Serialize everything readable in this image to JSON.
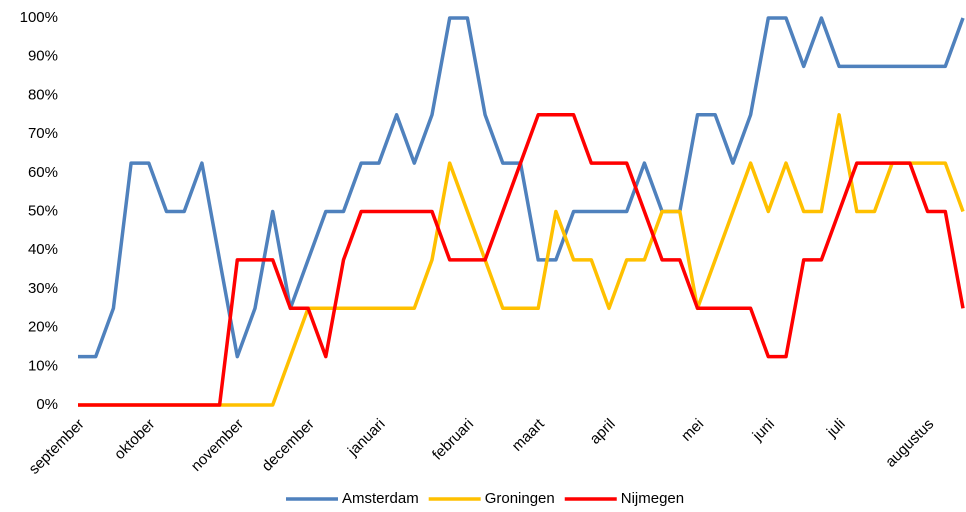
{
  "chart_data": {
    "type": "line",
    "categories": [
      "september",
      null,
      null,
      null,
      "oktober",
      null,
      null,
      null,
      null,
      "november",
      null,
      null,
      null,
      "december",
      null,
      null,
      null,
      "januari",
      null,
      null,
      null,
      null,
      "februari",
      null,
      null,
      null,
      "maart",
      null,
      null,
      null,
      "april",
      null,
      null,
      null,
      null,
      "mei",
      null,
      null,
      null,
      "juni",
      null,
      null,
      null,
      "juli",
      null,
      null,
      null,
      null,
      "augustus",
      null,
      null
    ],
    "series": [
      {
        "name": "Amsterdam",
        "color": "#4f81bd",
        "values": [
          12.5,
          12.5,
          25,
          62.5,
          62.5,
          50,
          50,
          62.5,
          37.5,
          12.5,
          25,
          50,
          25,
          37.5,
          50,
          50,
          62.5,
          62.5,
          75,
          62.5,
          75,
          100,
          100,
          75,
          62.5,
          62.5,
          37.5,
          37.5,
          50,
          50,
          50,
          50,
          62.5,
          50,
          50,
          75,
          75,
          62.5,
          75,
          100,
          100,
          87.5,
          100,
          87.5,
          87.5,
          87.5,
          87.5,
          87.5,
          87.5,
          87.5,
          100
        ]
      },
      {
        "name": "Groningen",
        "color": "#ffc000",
        "values": [
          0,
          0,
          0,
          0,
          0,
          0,
          0,
          0,
          0,
          0,
          0,
          0,
          12.5,
          25,
          25,
          25,
          25,
          25,
          25,
          25,
          37.5,
          62.5,
          50,
          37.5,
          25,
          25,
          25,
          50,
          37.5,
          37.5,
          25,
          37.5,
          37.5,
          50,
          50,
          25,
          37.5,
          50,
          62.5,
          50,
          62.5,
          50,
          50,
          75,
          50,
          50,
          62.5,
          62.5,
          62.5,
          62.5,
          50
        ]
      },
      {
        "name": "Nijmegen",
        "color": "#ff0000",
        "values": [
          0,
          0,
          0,
          0,
          0,
          0,
          0,
          0,
          0,
          37.5,
          37.5,
          37.5,
          25,
          25,
          12.5,
          37.5,
          50,
          50,
          50,
          50,
          50,
          37.5,
          37.5,
          37.5,
          50,
          62.5,
          75,
          75,
          75,
          62.5,
          62.5,
          62.5,
          50,
          37.5,
          37.5,
          25,
          25,
          25,
          25,
          12.5,
          12.5,
          37.5,
          37.5,
          50,
          62.5,
          62.5,
          62.5,
          62.5,
          50,
          50,
          25
        ]
      }
    ],
    "ylim": [
      0,
      100
    ],
    "yticks": [
      {
        "value": 0,
        "label": "0%"
      },
      {
        "value": 10,
        "label": "10%"
      },
      {
        "value": 20,
        "label": "20%"
      },
      {
        "value": 30,
        "label": "30%"
      },
      {
        "value": 40,
        "label": "40%"
      },
      {
        "value": 50,
        "label": "50%"
      },
      {
        "value": 60,
        "label": "60%"
      },
      {
        "value": 70,
        "label": "70%"
      },
      {
        "value": 80,
        "label": "80%"
      },
      {
        "value": 90,
        "label": "90%"
      },
      {
        "value": 100,
        "label": "100%"
      }
    ],
    "legend": "bottom"
  }
}
